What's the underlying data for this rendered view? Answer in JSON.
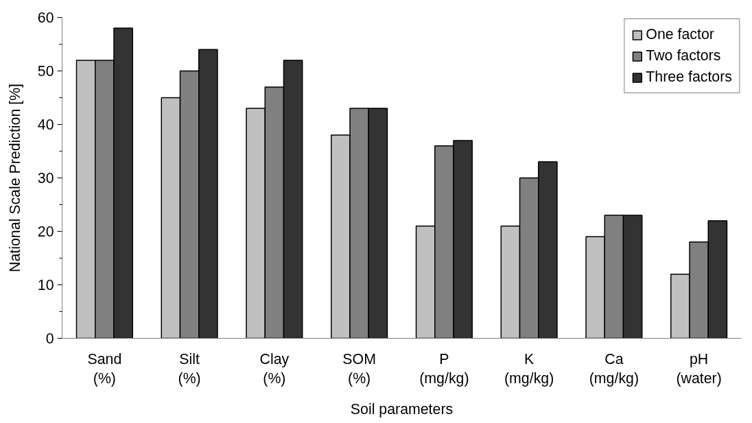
{
  "chart_data": {
    "type": "bar",
    "xlabel": "Soil parameters",
    "ylabel": "National Scale Prediction [%]",
    "categories": [
      "Sand\n(%)",
      "Silt\n(%)",
      "Clay\n(%)",
      "SOM\n(%)",
      "P\n(mg/kg)",
      "K\n(mg/kg)",
      "Ca\n(mg/kg)",
      "pH\n(water)"
    ],
    "series": [
      {
        "name": "One factor",
        "color": "#c0c0c0",
        "values": [
          52,
          45,
          43,
          38,
          21,
          21,
          19,
          12
        ]
      },
      {
        "name": "Two factors",
        "color": "#808080",
        "values": [
          52,
          50,
          47,
          43,
          36,
          30,
          23,
          18
        ]
      },
      {
        "name": "Three factors",
        "color": "#333333",
        "values": [
          58,
          54,
          52,
          43,
          37,
          33,
          23,
          22
        ]
      }
    ],
    "ylim": [
      0,
      60
    ],
    "yticks": [
      0,
      10,
      20,
      30,
      40,
      50,
      60
    ],
    "grid": false,
    "legend": "top right"
  }
}
